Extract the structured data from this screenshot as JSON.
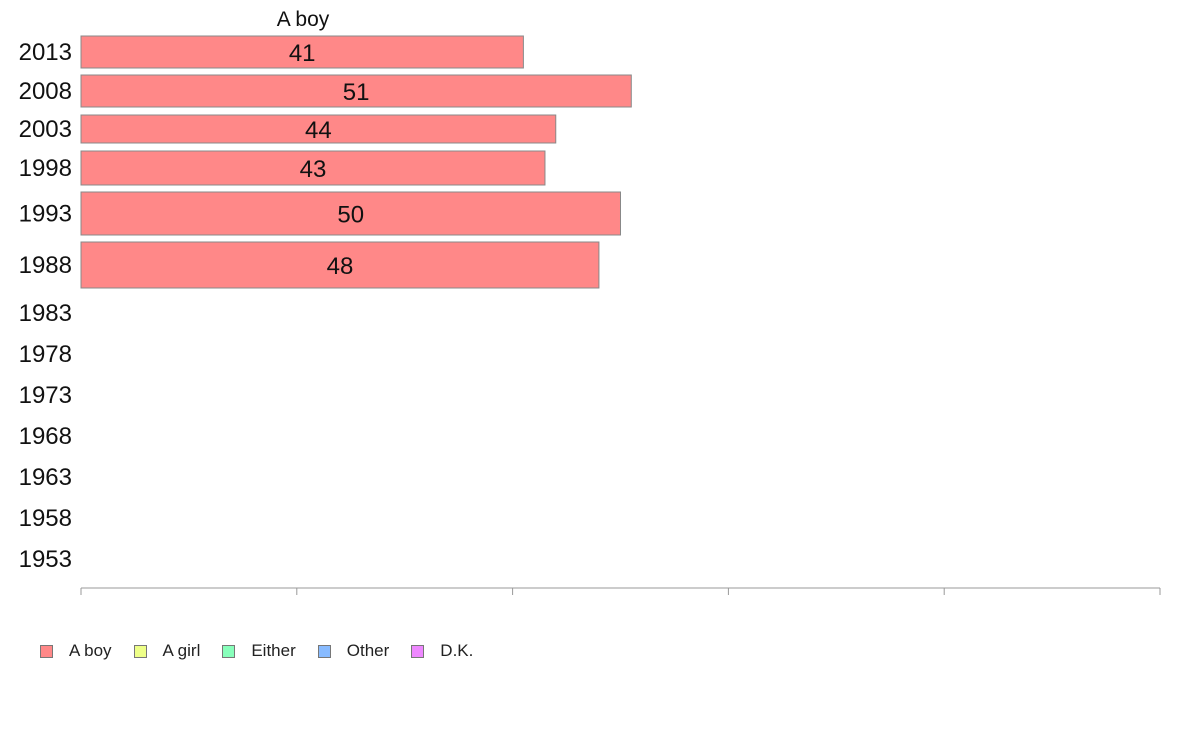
{
  "chart_data": {
    "type": "bar",
    "orientation": "horizontal",
    "stacked": true,
    "categories": [
      "2013",
      "2008",
      "2003",
      "1998",
      "1993",
      "1988",
      "1983",
      "1978",
      "1973",
      "1968",
      "1963",
      "1958",
      "1953"
    ],
    "series": [
      {
        "name": "A boy",
        "color": "#ff8888",
        "values": [
          41,
          51,
          44,
          43,
          50,
          48,
          null,
          null,
          null,
          null,
          null,
          null,
          null
        ]
      },
      {
        "name": "A girl",
        "color": "#eeff88",
        "values": [
          null,
          null,
          null,
          null,
          null,
          null,
          null,
          null,
          null,
          null,
          null,
          null,
          null
        ]
      },
      {
        "name": "Either",
        "color": "#88ffbb",
        "values": [
          null,
          null,
          null,
          null,
          null,
          null,
          null,
          null,
          null,
          null,
          null,
          null,
          null
        ]
      },
      {
        "name": "Other",
        "color": "#88bbff",
        "values": [
          null,
          null,
          null,
          null,
          null,
          null,
          null,
          null,
          null,
          null,
          null,
          null,
          null
        ]
      },
      {
        "name": "D.K.",
        "color": "#ee88ff",
        "values": [
          null,
          null,
          null,
          null,
          null,
          null,
          null,
          null,
          null,
          null,
          null,
          null,
          null
        ]
      }
    ],
    "column_header": "A boy",
    "xlim": [
      0,
      100
    ],
    "xticks": [
      0,
      20,
      40,
      60,
      80,
      100
    ],
    "grid": false,
    "legend_position": "bottom-left"
  }
}
